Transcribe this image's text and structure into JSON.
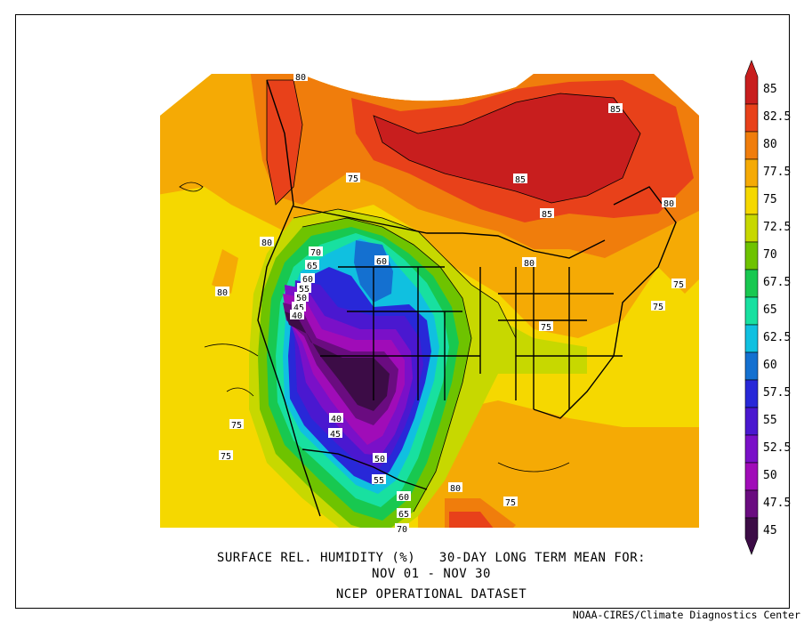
{
  "caption": {
    "line1": "SURFACE REL. HUMIDITY (%)   30-DAY LONG TERM MEAN FOR:",
    "line2": "NOV 01 - NOV 30",
    "line3": "NCEP OPERATIONAL DATASET"
  },
  "credit": "NOAA-CIRES/Climate Diagnostics Center",
  "colorbar": {
    "levels": [
      "85",
      "82.5",
      "80",
      "77.5",
      "75",
      "72.5",
      "70",
      "67.5",
      "65",
      "62.5",
      "60",
      "57.5",
      "55",
      "52.5",
      "50",
      "47.5",
      "45"
    ],
    "colors": [
      "#c81e1e",
      "#e8411a",
      "#f07d0c",
      "#f5aa05",
      "#f5d800",
      "#c7d800",
      "#6ec300",
      "#18c850",
      "#18e0a0",
      "#10c0e0",
      "#1470d0",
      "#2828d8",
      "#4a18d0",
      "#7a10c8",
      "#a00cb8",
      "#6a0c80",
      "#3c0c46"
    ]
  },
  "contour_labels": [
    {
      "text": "80"
    },
    {
      "text": "85"
    },
    {
      "text": "85"
    },
    {
      "text": "75"
    },
    {
      "text": "85"
    },
    {
      "text": "80"
    },
    {
      "text": "70"
    },
    {
      "text": "65"
    },
    {
      "text": "60"
    },
    {
      "text": "55"
    },
    {
      "text": "50"
    },
    {
      "text": "45"
    },
    {
      "text": "40"
    },
    {
      "text": "60"
    },
    {
      "text": "80"
    },
    {
      "text": "80"
    },
    {
      "text": "80"
    },
    {
      "text": "75"
    },
    {
      "text": "75"
    },
    {
      "text": "75"
    },
    {
      "text": "75"
    },
    {
      "text": "75"
    },
    {
      "text": "40"
    },
    {
      "text": "45"
    },
    {
      "text": "50"
    },
    {
      "text": "55"
    },
    {
      "text": "60"
    },
    {
      "text": "65"
    },
    {
      "text": "70"
    },
    {
      "text": "80"
    },
    {
      "text": "75"
    }
  ]
}
